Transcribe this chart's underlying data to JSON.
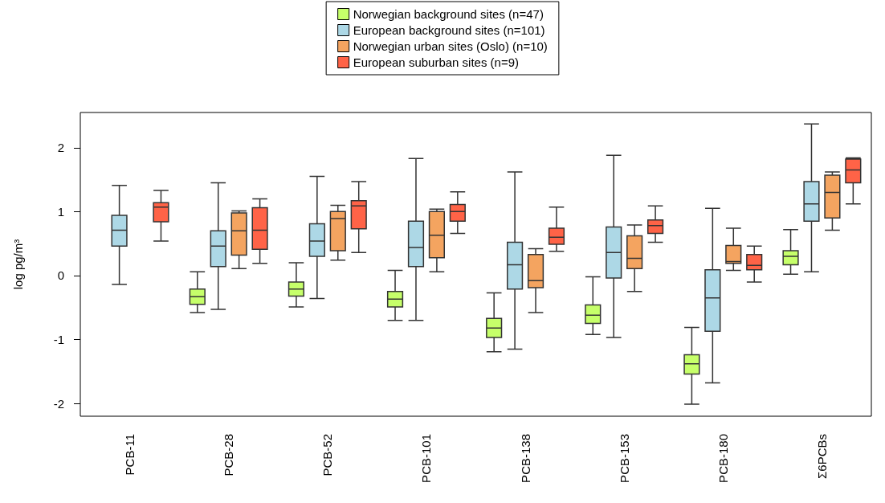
{
  "chart_data": {
    "type": "box",
    "ylabel": "log pg/m³",
    "categories": [
      "PCB-11",
      "PCB-28",
      "PCB-52",
      "PCB-101",
      "PCB-138",
      "PCB-153",
      "PCB-180",
      "Σ6PCBs"
    ],
    "ylim": [
      -2.2,
      2.55
    ],
    "yticks": [
      -2,
      -1,
      0,
      1,
      2
    ],
    "grid": false,
    "legend": "top",
    "series": [
      {
        "name": "Norwegian background sites (n=47)",
        "color": "#c6ff6a",
        "boxes": [
          null,
          {
            "low": -0.58,
            "q1": -0.45,
            "median": -0.33,
            "q3": -0.21,
            "high": 0.06
          },
          {
            "low": -0.49,
            "q1": -0.32,
            "median": -0.21,
            "q3": -0.1,
            "high": 0.2
          },
          {
            "low": -0.7,
            "q1": -0.49,
            "median": -0.37,
            "q3": -0.25,
            "high": 0.08
          },
          {
            "low": -1.19,
            "q1": -0.97,
            "median": -0.82,
            "q3": -0.67,
            "high": -0.27
          },
          {
            "low": -0.92,
            "q1": -0.75,
            "median": -0.62,
            "q3": -0.46,
            "high": -0.02
          },
          {
            "low": -2.01,
            "q1": -1.54,
            "median": -1.38,
            "q3": -1.24,
            "high": -0.81
          },
          {
            "low": 0.02,
            "q1": 0.17,
            "median": 0.3,
            "q3": 0.39,
            "high": 0.72
          }
        ]
      },
      {
        "name": "European background sites (n=101)",
        "color": "#add8e6",
        "boxes": [
          {
            "low": -0.14,
            "q1": 0.46,
            "median": 0.71,
            "q3": 0.94,
            "high": 1.41
          },
          {
            "low": -0.53,
            "q1": 0.14,
            "median": 0.46,
            "q3": 0.7,
            "high": 1.45
          },
          {
            "low": -0.36,
            "q1": 0.3,
            "median": 0.54,
            "q3": 0.81,
            "high": 1.55
          },
          {
            "low": -0.7,
            "q1": 0.14,
            "median": 0.44,
            "q3": 0.85,
            "high": 1.83
          },
          {
            "low": -1.15,
            "q1": -0.21,
            "median": 0.17,
            "q3": 0.52,
            "high": 1.62
          },
          {
            "low": -0.97,
            "q1": -0.04,
            "median": 0.36,
            "q3": 0.76,
            "high": 1.88
          },
          {
            "low": -1.68,
            "q1": -0.87,
            "median": -0.35,
            "q3": 0.09,
            "high": 1.05
          },
          {
            "low": 0.06,
            "q1": 0.85,
            "median": 1.12,
            "q3": 1.47,
            "high": 2.37
          }
        ]
      },
      {
        "name": "Norwegian urban sites (Oslo) (n=10)",
        "color": "#f4a460",
        "boxes": [
          null,
          {
            "low": 0.11,
            "q1": 0.32,
            "median": 0.7,
            "q3": 0.98,
            "high": 1.01
          },
          {
            "low": 0.24,
            "q1": 0.39,
            "median": 0.89,
            "q3": 1.0,
            "high": 1.1
          },
          {
            "low": 0.06,
            "q1": 0.28,
            "median": 0.63,
            "q3": 1.0,
            "high": 1.04
          },
          {
            "low": -0.58,
            "q1": -0.19,
            "median": -0.08,
            "q3": 0.33,
            "high": 0.42
          },
          {
            "low": -0.25,
            "q1": 0.11,
            "median": 0.27,
            "q3": 0.62,
            "high": 0.79
          },
          {
            "low": 0.08,
            "q1": 0.19,
            "median": 0.22,
            "q3": 0.47,
            "high": 0.74
          },
          {
            "low": 0.71,
            "q1": 0.9,
            "median": 1.3,
            "q3": 1.57,
            "high": 1.62
          }
        ]
      },
      {
        "name": "European suburban sites (n=9)",
        "color": "#ff6347",
        "boxes": [
          {
            "low": 0.54,
            "q1": 0.84,
            "median": 1.07,
            "q3": 1.14,
            "high": 1.33
          },
          {
            "low": 0.19,
            "q1": 0.41,
            "median": 0.71,
            "q3": 1.06,
            "high": 1.2
          },
          {
            "low": 0.36,
            "q1": 0.73,
            "median": 1.09,
            "q3": 1.17,
            "high": 1.47
          },
          {
            "low": 0.66,
            "q1": 0.85,
            "median": 1.0,
            "q3": 1.11,
            "high": 1.31
          },
          {
            "low": 0.38,
            "q1": 0.49,
            "median": 0.6,
            "q3": 0.74,
            "high": 1.07
          },
          {
            "low": 0.52,
            "q1": 0.66,
            "median": 0.78,
            "q3": 0.87,
            "high": 1.09
          },
          {
            "low": -0.1,
            "q1": 0.09,
            "median": 0.16,
            "q3": 0.33,
            "high": 0.46
          },
          {
            "low": 1.12,
            "q1": 1.45,
            "median": 1.65,
            "q3": 1.82,
            "high": 1.84
          }
        ]
      }
    ]
  }
}
